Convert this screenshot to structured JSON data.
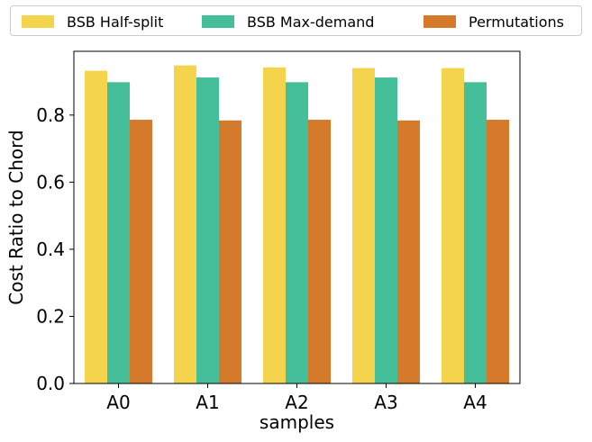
{
  "chart_data": {
    "type": "bar",
    "title": "",
    "xlabel": "samples",
    "ylabel": "Cost Ratio to Chord",
    "categories": [
      "A0",
      "A1",
      "A2",
      "A3",
      "A4"
    ],
    "ylim": [
      0,
      0.99
    ],
    "yticks": [
      0.0,
      0.2,
      0.4,
      0.6,
      0.8
    ],
    "ytick_labels": [
      "0.0",
      "0.2",
      "0.4",
      "0.6",
      "0.8"
    ],
    "grid": false,
    "legend_position": "top, outside plot",
    "series": [
      {
        "name": "BSB Half-split",
        "color": "#F4D44D",
        "values": [
          0.932,
          0.948,
          0.942,
          0.94,
          0.94
        ]
      },
      {
        "name": "BSB Max-demand",
        "color": "#45BF99",
        "values": [
          0.898,
          0.912,
          0.898,
          0.912,
          0.898
        ]
      },
      {
        "name": "Permutations",
        "color": "#D47A2A",
        "values": [
          0.786,
          0.784,
          0.786,
          0.784,
          0.786
        ]
      }
    ]
  }
}
